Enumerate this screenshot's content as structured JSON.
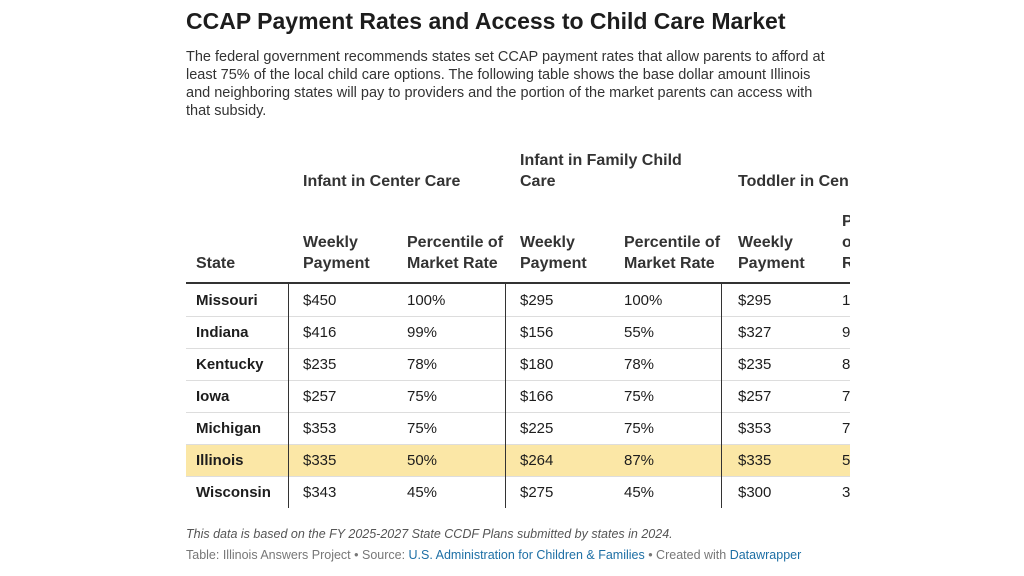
{
  "title": "CCAP Payment Rates and Access to Child Care Market",
  "description": "The federal government recommends states set CCAP payment rates that allow parents to afford at least 75% of the local child care options. The following table shows the base dollar amount Illinois and neighboring states will pay to providers and the portion of the market parents can access with that subsidy.",
  "table": {
    "group_headers": [
      "Infant in Center Care",
      "Infant in Family Child Care",
      "Toddler in Cen"
    ],
    "columns": [
      "State",
      "Weekly Payment",
      "Percentile of Market Rate",
      "Weekly Payment",
      "Percentile of Market Rate",
      "Weekly Payment",
      "P o R"
    ],
    "rows": [
      [
        "Missouri",
        "$450",
        "100%",
        "$295",
        "100%",
        "$295",
        "1"
      ],
      [
        "Indiana",
        "$416",
        "99%",
        "$156",
        "55%",
        "$327",
        "9"
      ],
      [
        "Kentucky",
        "$235",
        "78%",
        "$180",
        "78%",
        "$235",
        "8"
      ],
      [
        "Iowa",
        "$257",
        "75%",
        "$166",
        "75%",
        "$257",
        "7"
      ],
      [
        "Michigan",
        "$353",
        "75%",
        "$225",
        "75%",
        "$353",
        "7"
      ],
      [
        "Illinois",
        "$335",
        "50%",
        "$264",
        "87%",
        "$335",
        "5"
      ],
      [
        "Wisconsin",
        "$343",
        "45%",
        "$275",
        "45%",
        "$300",
        "3"
      ]
    ]
  },
  "note": "This data is based on the FY 2025-2027 State CCDF Plans submitted by states in 2024.",
  "source": {
    "prefix": "Table: Illinois Answers Project • Source: ",
    "link": "U.S. Administration for Children & Families",
    "middle": " • Created with ",
    "tool": "Datawrapper"
  }
}
